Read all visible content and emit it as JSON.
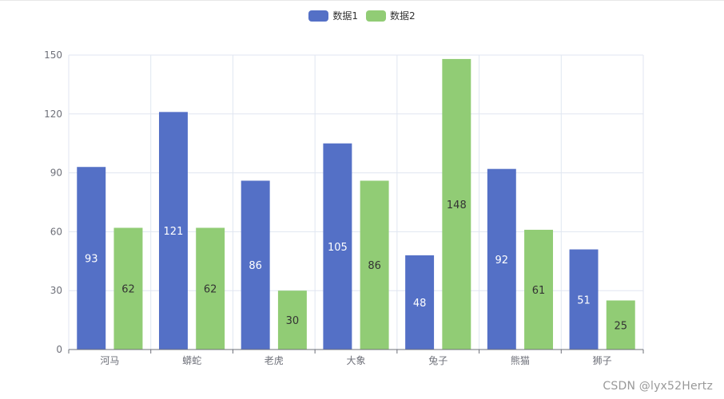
{
  "legend": [
    "数据1",
    "数据2"
  ],
  "colors": {
    "series1": "#5470c6",
    "series2": "#91cc75",
    "grid": "#e0e6f1",
    "axis": "#6e7079",
    "label_light": "#ffffff",
    "label_dark": "#333333"
  },
  "watermark": "CSDN @lyx52Hertz",
  "chart_data": {
    "type": "bar",
    "categories": [
      "河马",
      "蟒蛇",
      "老虎",
      "大象",
      "兔子",
      "熊猫",
      "狮子"
    ],
    "series": [
      {
        "name": "数据1",
        "values": [
          93,
          121,
          86,
          105,
          48,
          92,
          51
        ]
      },
      {
        "name": "数据2",
        "values": [
          62,
          62,
          30,
          86,
          148,
          61,
          25
        ]
      }
    ],
    "y_ticks": [
      0,
      30,
      60,
      90,
      120,
      150
    ],
    "ylim": [
      0,
      150
    ],
    "grid": true,
    "legend_position": "top-center",
    "data_labels": "inside-middle"
  }
}
